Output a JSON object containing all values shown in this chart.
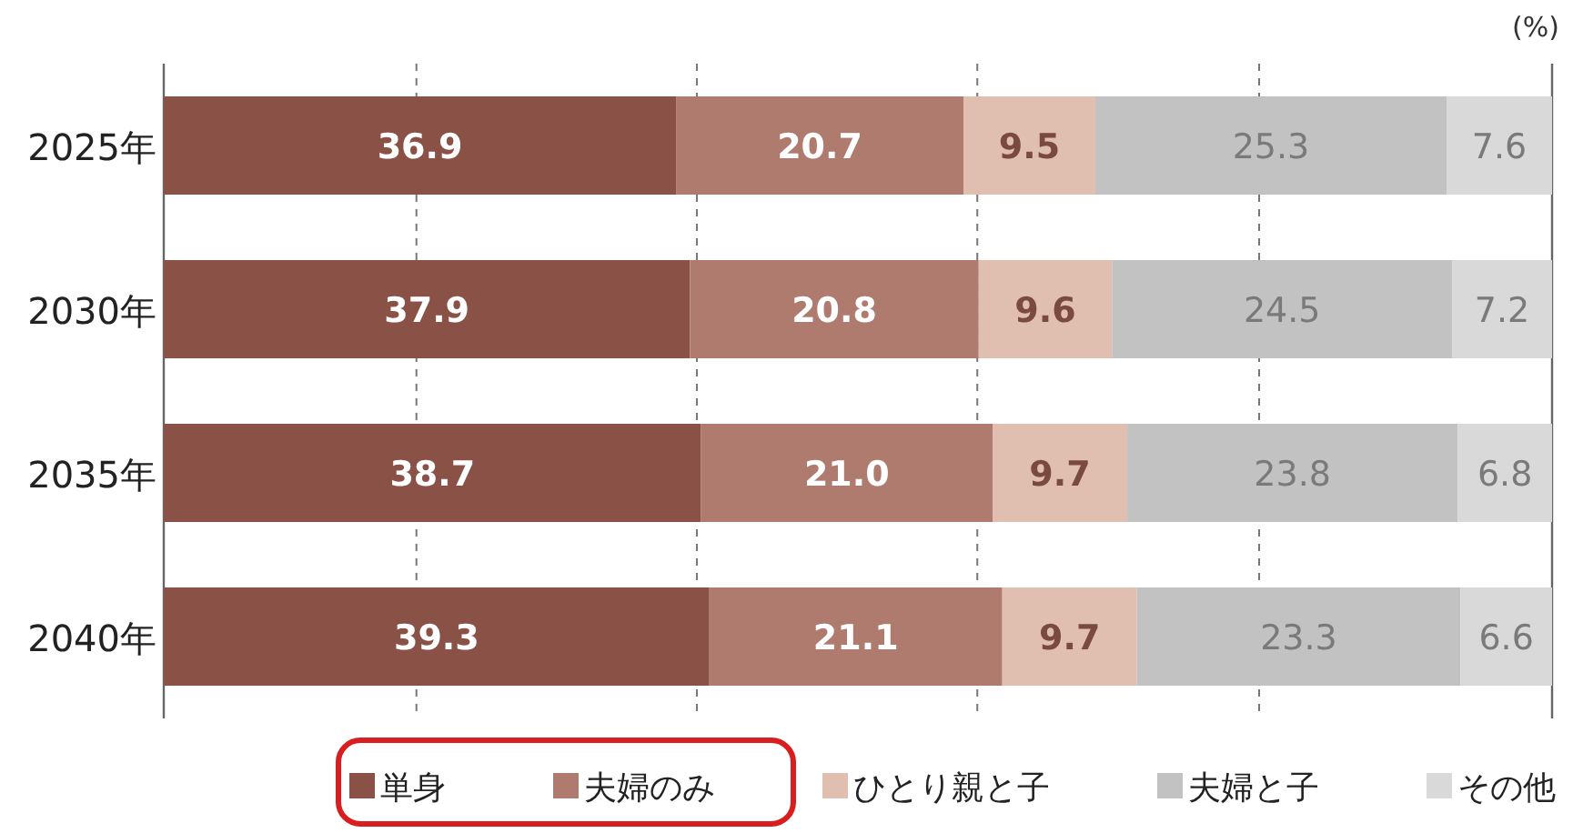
{
  "chart_data": {
    "type": "bar",
    "orientation": "horizontal",
    "stacked": true,
    "xlabel": "(%)",
    "categories": [
      "2025年",
      "2030年",
      "2035年",
      "2040年"
    ],
    "series": [
      {
        "name": "単身",
        "color": "#8a5146",
        "values": [
          36.9,
          37.9,
          38.7,
          39.3
        ],
        "value_labels": [
          "36.9",
          "37.9",
          "38.7",
          "39.3"
        ]
      },
      {
        "name": "夫婦のみ",
        "color": "#b07b6f",
        "values": [
          20.7,
          20.8,
          21.0,
          21.1
        ],
        "value_labels": [
          "20.7",
          "20.8",
          "21.0",
          "21.1"
        ]
      },
      {
        "name": "ひとり親と子",
        "color": "#e0bfb1",
        "values": [
          9.5,
          9.6,
          9.7,
          9.7
        ],
        "value_labels": [
          "9.5",
          "9.6",
          "9.7",
          "9.7"
        ]
      },
      {
        "name": "夫婦と子",
        "color": "#c2c2c2",
        "values": [
          25.3,
          24.5,
          23.8,
          23.3
        ],
        "value_labels": [
          "25.3",
          "24.5",
          "23.8",
          "23.3"
        ]
      },
      {
        "name": "その他",
        "color": "#d9d9d9",
        "values": [
          7.6,
          7.2,
          6.8,
          6.6
        ],
        "value_labels": [
          "7.6",
          "7.2",
          "6.8",
          "6.6"
        ]
      }
    ],
    "xlim": [
      0,
      100
    ],
    "xticks": [
      {
        "value": 18.2,
        "label": null
      },
      {
        "value": 38.4,
        "label": null
      },
      {
        "value": 58.6,
        "label": null
      },
      {
        "value": 78.9,
        "label": null
      }
    ],
    "grid": "x",
    "tick_labels": "y",
    "legend": "bottom"
  }
}
